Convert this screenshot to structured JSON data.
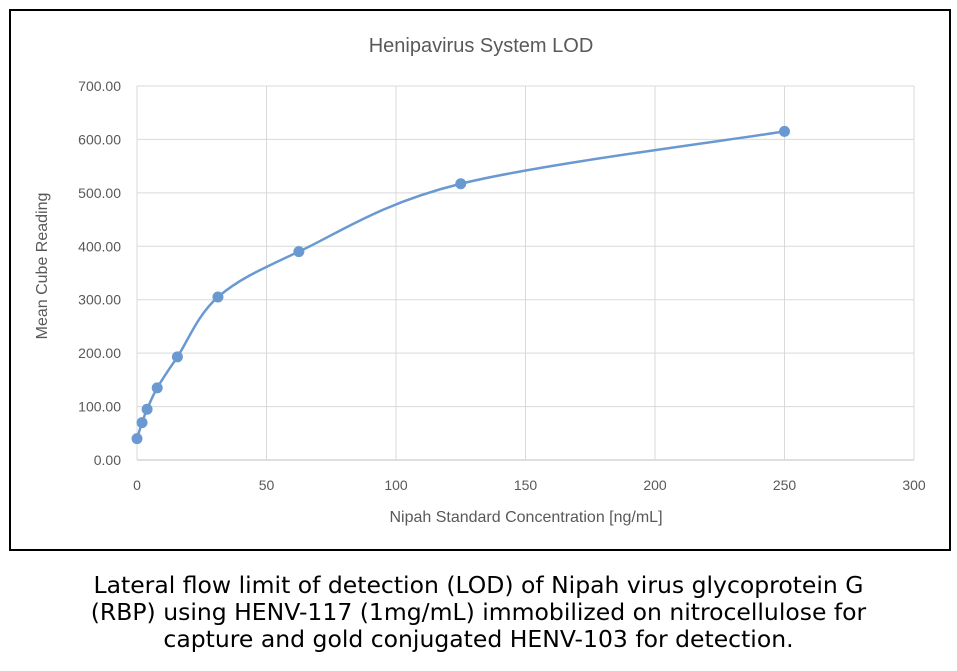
{
  "chart_data": {
    "type": "scatter",
    "title": "Henipavirus System LOD",
    "xlabel": "Nipah Standard Concentration [ng/mL]",
    "ylabel": "Mean Cube Reading",
    "xlim": [
      0,
      300
    ],
    "ylim": [
      0,
      700
    ],
    "xticks": [
      "0",
      "50",
      "100",
      "150",
      "200",
      "250",
      "300"
    ],
    "yticks": [
      "0.00",
      "100.00",
      "200.00",
      "300.00",
      "400.00",
      "500.00",
      "600.00",
      "700.00"
    ],
    "grid": true,
    "smoothed_line": true,
    "series": [
      {
        "x": [
          0,
          1.95,
          3.9,
          7.8,
          15.6,
          31.25,
          62.5,
          125,
          250
        ],
        "y": [
          40,
          70,
          95,
          135,
          193,
          305,
          390,
          517,
          615
        ],
        "color": "#6a99d2"
      }
    ]
  },
  "caption": {
    "line1": "Lateral flow limit of detection (LOD) of Nipah virus glycoprotein G",
    "line2": "(RBP) using HENV-117 (1mg/mL) immobilized on nitrocellulose for",
    "line3": "capture and gold conjugated HENV-103 for detection."
  }
}
